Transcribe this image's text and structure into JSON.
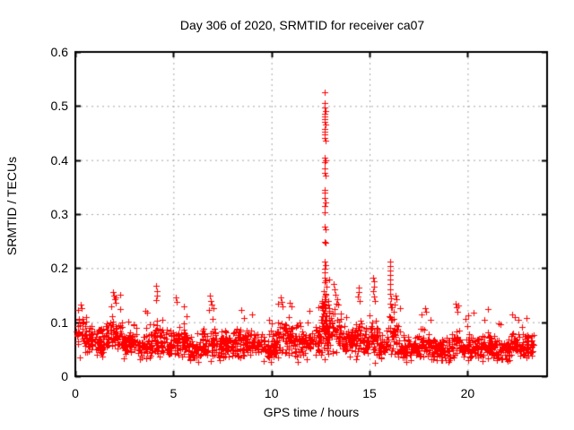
{
  "chart_data": {
    "type": "scatter",
    "title": "Day 306 of 2020, SRMTID for receiver ca07",
    "xlabel": "GPS time / hours",
    "ylabel": "SRMTID / TECUs",
    "xlim": [
      0,
      24.05
    ],
    "ylim": [
      0,
      0.6
    ],
    "xticks": [
      "0",
      "5",
      "10",
      "15",
      "20"
    ],
    "xtick_values": [
      0,
      5,
      10,
      15,
      20
    ],
    "yticks": [
      "0",
      "0.1",
      "0.2",
      "0.3",
      "0.4",
      "0.5",
      "0.6"
    ],
    "ytick_values": [
      0,
      0.1,
      0.2,
      0.3,
      0.4,
      0.5,
      0.6
    ],
    "grid": {
      "show": true,
      "color": "#a8a8a8",
      "dash": [
        2,
        4
      ]
    },
    "frame_color": "#000000",
    "marker": {
      "shape": "plus",
      "color": "#ff0000",
      "size": 7
    },
    "series_name": "SRMTID",
    "noise_seed": 7,
    "samples_per_hour": 80,
    "baseline_segments": [
      [
        0.05,
        0.6,
        0.075,
        0.022,
        0.135
      ],
      [
        0.6,
        1.5,
        0.065,
        0.018,
        0.115
      ],
      [
        1.5,
        2.4,
        0.078,
        0.024,
        0.155
      ],
      [
        2.4,
        3.2,
        0.06,
        0.016,
        0.105
      ],
      [
        3.2,
        3.9,
        0.058,
        0.016,
        0.118
      ],
      [
        3.9,
        4.4,
        0.068,
        0.022,
        0.165
      ],
      [
        4.4,
        5.0,
        0.06,
        0.016,
        0.11
      ],
      [
        5.0,
        5.35,
        0.065,
        0.02,
        0.145
      ],
      [
        5.35,
        5.8,
        0.06,
        0.018,
        0.128
      ],
      [
        5.8,
        6.4,
        0.05,
        0.014,
        0.095
      ],
      [
        6.4,
        7.2,
        0.06,
        0.02,
        0.148
      ],
      [
        7.2,
        8.2,
        0.058,
        0.016,
        0.11
      ],
      [
        8.2,
        9.2,
        0.062,
        0.018,
        0.122
      ],
      [
        9.2,
        10.3,
        0.058,
        0.016,
        0.11
      ],
      [
        10.3,
        10.6,
        0.07,
        0.022,
        0.145
      ],
      [
        10.6,
        11.2,
        0.068,
        0.022,
        0.136
      ],
      [
        11.2,
        12.2,
        0.06,
        0.018,
        0.12
      ],
      [
        12.2,
        12.55,
        0.07,
        0.02,
        0.128
      ],
      [
        12.55,
        13.05,
        0.1,
        0.035,
        0.19
      ],
      [
        12.6,
        13.0,
        0.08,
        0.025,
        0.14
      ],
      [
        13.05,
        13.55,
        0.085,
        0.028,
        0.168
      ],
      [
        13.55,
        14.3,
        0.065,
        0.018,
        0.12
      ],
      [
        14.3,
        14.65,
        0.075,
        0.025,
        0.162
      ],
      [
        14.65,
        15.05,
        0.062,
        0.018,
        0.118
      ],
      [
        15.05,
        15.45,
        0.072,
        0.026,
        0.182
      ],
      [
        15.45,
        15.95,
        0.058,
        0.016,
        0.108
      ],
      [
        15.95,
        16.25,
        0.08,
        0.033,
        0.2
      ],
      [
        16.25,
        16.55,
        0.066,
        0.022,
        0.148
      ],
      [
        16.55,
        17.6,
        0.052,
        0.014,
        0.1
      ],
      [
        17.6,
        18.1,
        0.058,
        0.018,
        0.126
      ],
      [
        18.1,
        19.2,
        0.05,
        0.014,
        0.098
      ],
      [
        19.2,
        19.7,
        0.06,
        0.021,
        0.134
      ],
      [
        19.7,
        20.6,
        0.052,
        0.015,
        0.114
      ],
      [
        20.6,
        21.2,
        0.055,
        0.016,
        0.124
      ],
      [
        21.2,
        22.1,
        0.05,
        0.014,
        0.1
      ],
      [
        22.1,
        22.7,
        0.058,
        0.017,
        0.116
      ],
      [
        22.7,
        23.35,
        0.054,
        0.016,
        0.1
      ]
    ],
    "outlier_points": [
      [
        12.72,
        0.525
      ],
      [
        12.73,
        0.506
      ],
      [
        12.71,
        0.497
      ],
      [
        12.74,
        0.49
      ],
      [
        12.72,
        0.486
      ],
      [
        12.7,
        0.481
      ],
      [
        12.73,
        0.476
      ],
      [
        12.71,
        0.471
      ],
      [
        12.74,
        0.466
      ],
      [
        12.72,
        0.458
      ],
      [
        12.7,
        0.452
      ],
      [
        12.73,
        0.447
      ],
      [
        12.71,
        0.441
      ],
      [
        12.74,
        0.436
      ],
      [
        12.72,
        0.405
      ],
      [
        12.75,
        0.4
      ],
      [
        12.7,
        0.396
      ],
      [
        12.73,
        0.385
      ],
      [
        12.71,
        0.377
      ],
      [
        12.74,
        0.372
      ],
      [
        12.72,
        0.345
      ],
      [
        12.7,
        0.34
      ],
      [
        12.73,
        0.33
      ],
      [
        12.75,
        0.322
      ],
      [
        12.71,
        0.315
      ],
      [
        12.73,
        0.303
      ],
      [
        12.72,
        0.277
      ],
      [
        12.74,
        0.272
      ],
      [
        12.7,
        0.249
      ],
      [
        12.76,
        0.247
      ],
      [
        12.72,
        0.212
      ],
      [
        12.74,
        0.206
      ],
      [
        12.71,
        0.199
      ],
      [
        12.73,
        0.192
      ],
      [
        12.72,
        0.182
      ],
      [
        12.75,
        0.178
      ],
      [
        12.7,
        0.174
      ],
      [
        12.78,
        0.165
      ],
      [
        12.68,
        0.158
      ],
      [
        12.74,
        0.152
      ],
      [
        12.71,
        0.147
      ],
      [
        12.76,
        0.142
      ],
      [
        12.69,
        0.137
      ],
      [
        12.73,
        0.131
      ],
      [
        12.77,
        0.126
      ],
      [
        12.7,
        0.121
      ],
      [
        16.03,
        0.212
      ],
      [
        16.06,
        0.204
      ],
      [
        16.04,
        0.196
      ],
      [
        16.07,
        0.188
      ],
      [
        16.05,
        0.179
      ],
      [
        16.03,
        0.17
      ],
      [
        16.06,
        0.161
      ],
      [
        16.04,
        0.152
      ],
      [
        16.08,
        0.144
      ],
      [
        16.05,
        0.135
      ],
      [
        16.1,
        0.127
      ],
      [
        16.32,
        0.15
      ],
      [
        16.35,
        0.142
      ],
      [
        16.3,
        0.133
      ],
      [
        15.18,
        0.183
      ],
      [
        15.21,
        0.175
      ],
      [
        15.24,
        0.166
      ],
      [
        15.19,
        0.157
      ],
      [
        15.22,
        0.148
      ],
      [
        15.25,
        0.139
      ],
      [
        14.44,
        0.164
      ],
      [
        14.47,
        0.155
      ],
      [
        14.42,
        0.147
      ],
      [
        14.49,
        0.139
      ],
      [
        13.18,
        0.17
      ],
      [
        13.22,
        0.161
      ],
      [
        13.27,
        0.151
      ],
      [
        13.33,
        0.142
      ],
      [
        13.38,
        0.133
      ],
      [
        12.38,
        0.128
      ],
      [
        11.92,
        0.121
      ],
      [
        10.48,
        0.146
      ],
      [
        10.51,
        0.138
      ],
      [
        10.54,
        0.13
      ],
      [
        10.92,
        0.136
      ],
      [
        11.02,
        0.129
      ],
      [
        1.92,
        0.156
      ],
      [
        1.97,
        0.149
      ],
      [
        2.02,
        0.143
      ],
      [
        2.08,
        0.136
      ],
      [
        1.85,
        0.13
      ],
      [
        2.28,
        0.124
      ],
      [
        4.12,
        0.167
      ],
      [
        4.15,
        0.158
      ],
      [
        4.18,
        0.149
      ],
      [
        4.13,
        0.141
      ],
      [
        5.12,
        0.146
      ],
      [
        5.16,
        0.138
      ],
      [
        5.55,
        0.129
      ],
      [
        6.84,
        0.149
      ],
      [
        6.9,
        0.14
      ],
      [
        6.95,
        0.132
      ],
      [
        7.05,
        0.126
      ],
      [
        0.28,
        0.132
      ],
      [
        0.33,
        0.126
      ],
      [
        0.12,
        0.122
      ],
      [
        3.55,
        0.121
      ],
      [
        8.45,
        0.123
      ],
      [
        9.02,
        0.115
      ],
      [
        17.82,
        0.126
      ],
      [
        17.87,
        0.119
      ],
      [
        19.38,
        0.134
      ],
      [
        19.44,
        0.127
      ],
      [
        19.5,
        0.12
      ],
      [
        20.32,
        0.118
      ],
      [
        21.02,
        0.124
      ],
      [
        22.28,
        0.115
      ],
      [
        22.4,
        0.11
      ],
      [
        23.02,
        0.108
      ]
    ]
  }
}
